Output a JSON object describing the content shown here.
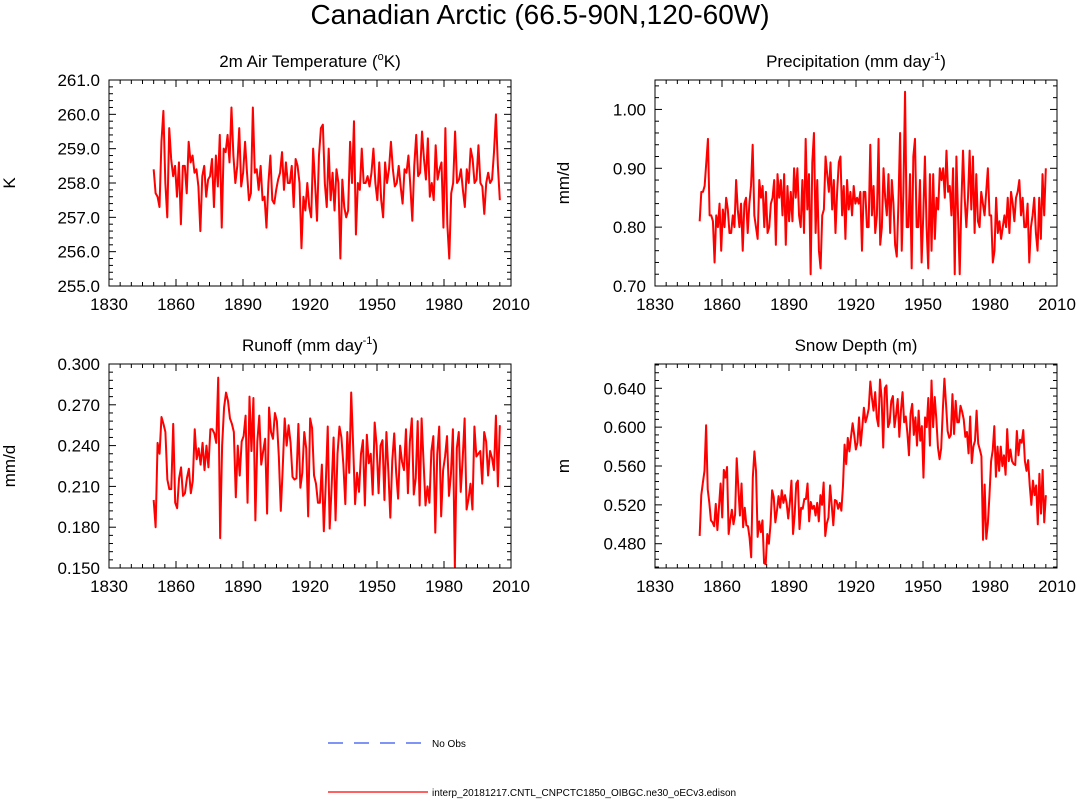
{
  "figure": {
    "title": "Canadian Arctic (66.5-90N,120-60W)"
  },
  "legend": {
    "items": [
      {
        "label": "No Obs",
        "color": "#3355ee",
        "style": "dashed"
      },
      {
        "label": "interp_20181217.CNTL_CNPCTC1850_OIBGC.ne30_oECv3.edison",
        "color": "#ff0000",
        "style": "solid"
      }
    ]
  },
  "chart_data": [
    {
      "type": "line",
      "title": "2m Air Temperature (",
      "title_sup": "o",
      "title_after": "K)",
      "xlabel": "",
      "ylabel": "K",
      "xlim": [
        1830,
        2010
      ],
      "ylim": [
        255.0,
        261.0
      ],
      "xticks": [
        1830,
        1860,
        1890,
        1920,
        1950,
        1980,
        2010
      ],
      "yticks": [
        "255.0",
        "256.0",
        "257.0",
        "258.0",
        "259.0",
        "260.0",
        "261.0"
      ],
      "series": [
        {
          "name": "interp_20181217.CNTL_CNPCTC1850_OIBGC.ne30_oECv3.edison",
          "color": "#ff0000",
          "x_start": 1850,
          "values": [
            258.4,
            257.7,
            257.6,
            257.3,
            259.2,
            260.1,
            258.0,
            257.0,
            259.6,
            258.7,
            258.2,
            258.5,
            257.6,
            258.6,
            256.8,
            258.5,
            258.5,
            257.7,
            259.2,
            258.6,
            258.8,
            258.3,
            258.4,
            257.9,
            256.6,
            258.2,
            258.5,
            257.6,
            258.1,
            258.2,
            258.7,
            257.3,
            258.8,
            257.9,
            259.4,
            256.7,
            259.0,
            258.9,
            259.4,
            258.6,
            260.2,
            258.8,
            258.0,
            258.5,
            259.6,
            257.9,
            258.3,
            259.2,
            258.3,
            257.5,
            257.7,
            260.2,
            258.3,
            258.4,
            257.8,
            258.5,
            257.5,
            257.6,
            256.7,
            258.0,
            258.8,
            257.5,
            257.4,
            257.8,
            258.1,
            258.3,
            258.9,
            257.8,
            258.6,
            258.0,
            258.0,
            258.5,
            257.3,
            258.7,
            258.5,
            258.0,
            256.1,
            257.6,
            257.2,
            258.0,
            257.3,
            257.0,
            259.0,
            258.0,
            256.9,
            258.8,
            259.6,
            259.7,
            258.0,
            257.3,
            259.0,
            257.5,
            258.3,
            257.2,
            258.4,
            258.0,
            255.8,
            258.1,
            257.3,
            257.0,
            257.2,
            259.2,
            258.0,
            259.8,
            256.5,
            258.0,
            257.8,
            259.0,
            258.0,
            258.0,
            258.2,
            257.9,
            258.3,
            259.0,
            258.0,
            257.5,
            258.6,
            257.5,
            257.0,
            258.6,
            258.0,
            258.4,
            259.2,
            258.4,
            257.9,
            258.0,
            258.5,
            257.9,
            257.4,
            258.4,
            258.3,
            258.8,
            257.9,
            256.9,
            258.5,
            259.4,
            258.2,
            258.3,
            259.5,
            258.7,
            258.1,
            259.3,
            257.6,
            258.0,
            257.5,
            259.1,
            258.1,
            258.4,
            258.6,
            256.7,
            259.6,
            256.8,
            255.8,
            257.7,
            258.0,
            259.5,
            258.0,
            258.1,
            258.4,
            257.8,
            257.3,
            258.4,
            258.0,
            259.0,
            258.7,
            258.0,
            258.1,
            259.1,
            258.0,
            257.9,
            257.1,
            258.0,
            258.3,
            258.0,
            258.1,
            258.9,
            260.0,
            258.5,
            257.5
          ]
        }
      ]
    },
    {
      "type": "line",
      "title": "Precipitation (mm day",
      "title_sup": "-1",
      "title_after": ")",
      "xlabel": "",
      "ylabel": "mm/d",
      "xlim": [
        1830,
        2010
      ],
      "ylim": [
        0.7,
        1.05
      ],
      "xticks": [
        1830,
        1860,
        1890,
        1920,
        1950,
        1980,
        2010
      ],
      "yticks": [
        "0.70",
        "0.80",
        "0.90",
        "1.00"
      ],
      "series": [
        {
          "name": "interp_20181217.CNTL_CNPCTC1850_OIBGC.ne30_oECv3.edison",
          "color": "#ff0000",
          "x_start": 1850,
          "values": [
            0.81,
            0.86,
            0.86,
            0.87,
            0.91,
            0.95,
            0.82,
            0.82,
            0.81,
            0.74,
            0.82,
            0.8,
            0.84,
            0.76,
            0.83,
            0.8,
            0.85,
            0.83,
            0.79,
            0.79,
            0.82,
            0.8,
            0.88,
            0.83,
            0.8,
            0.84,
            0.76,
            0.84,
            0.85,
            0.79,
            0.84,
            0.87,
            0.94,
            0.82,
            0.8,
            0.78,
            0.88,
            0.85,
            0.87,
            0.8,
            0.86,
            0.79,
            0.8,
            0.84,
            0.85,
            0.88,
            0.77,
            0.89,
            0.85,
            0.88,
            0.82,
            0.89,
            0.77,
            0.87,
            0.81,
            0.86,
            0.81,
            0.9,
            0.85,
            0.9,
            0.82,
            0.8,
            0.88,
            0.79,
            0.95,
            0.83,
            0.89,
            0.72,
            0.91,
            0.96,
            0.79,
            0.88,
            0.76,
            0.73,
            0.82,
            0.83,
            0.92,
            0.89,
            0.86,
            0.91,
            0.83,
            0.88,
            0.79,
            0.86,
            0.91,
            0.92,
            0.82,
            0.87,
            0.78,
            0.88,
            0.83,
            0.86,
            0.82,
            0.87,
            0.84,
            0.85,
            0.84,
            0.86,
            0.76,
            0.86,
            0.86,
            0.8,
            0.8,
            0.94,
            0.82,
            0.87,
            0.79,
            0.82,
            0.95,
            0.77,
            0.8,
            0.9,
            0.85,
            0.82,
            0.89,
            0.79,
            0.88,
            0.84,
            0.77,
            0.75,
            0.84,
            0.96,
            0.76,
            0.86,
            1.03,
            0.8,
            0.8,
            0.89,
            0.73,
            0.92,
            0.95,
            0.8,
            0.8,
            0.88,
            0.74,
            0.82,
            0.92,
            0.8,
            0.73,
            0.89,
            0.76,
            0.89,
            0.78,
            0.85,
            0.83,
            0.9,
            0.88,
            0.9,
            0.85,
            0.93,
            0.86,
            0.87,
            0.82,
            0.9,
            0.72,
            0.92,
            0.82,
            0.72,
            0.84,
            0.93,
            0.85,
            0.8,
            0.85,
            0.93,
            0.83,
            0.92,
            0.79,
            0.89,
            0.81,
            0.8,
            0.86,
            0.84,
            0.82,
            0.86,
            0.9,
            0.82,
            0.82,
            0.74,
            0.76,
            0.85,
            0.79,
            0.81,
            0.78,
            0.8,
            0.82,
            0.8,
            0.85,
            0.79,
            0.86,
            0.84,
            0.81,
            0.85,
            0.86,
            0.88,
            0.82,
            0.85,
            0.8,
            0.8,
            0.84,
            0.74,
            0.8,
            0.82,
            0.85,
            0.79,
            0.76,
            0.85,
            0.78,
            0.89,
            0.82,
            0.9
          ]
        }
      ]
    },
    {
      "type": "line",
      "title": "Runoff (mm day",
      "title_sup": "-1",
      "title_after": ")",
      "xlabel": "",
      "ylabel": "mm/d",
      "xlim": [
        1830,
        2010
      ],
      "ylim": [
        0.15,
        0.3
      ],
      "xticks": [
        1830,
        1860,
        1890,
        1920,
        1950,
        1980,
        2010
      ],
      "yticks": [
        "0.150",
        "0.180",
        "0.210",
        "0.240",
        "0.270",
        "0.300"
      ],
      "series": [
        {
          "name": "interp_20181217.CNTL_CNPCTC1850_OIBGC.ne30_oECv3.edison",
          "color": "#ff0000",
          "x_start": 1850,
          "values": [
            0.2,
            0.18,
            0.242,
            0.234,
            0.261,
            0.256,
            0.25,
            0.215,
            0.208,
            0.208,
            0.256,
            0.198,
            0.194,
            0.216,
            0.224,
            0.203,
            0.205,
            0.216,
            0.223,
            0.205,
            0.214,
            0.252,
            0.23,
            0.238,
            0.226,
            0.242,
            0.222,
            0.24,
            0.224,
            0.252,
            0.252,
            0.249,
            0.242,
            0.29,
            0.172,
            0.24,
            0.268,
            0.279,
            0.273,
            0.26,
            0.256,
            0.25,
            0.202,
            0.24,
            0.218,
            0.243,
            0.247,
            0.262,
            0.198,
            0.276,
            0.236,
            0.275,
            0.185,
            0.243,
            0.262,
            0.226,
            0.236,
            0.245,
            0.19,
            0.268,
            0.25,
            0.245,
            0.264,
            0.258,
            0.232,
            0.192,
            0.224,
            0.26,
            0.24,
            0.255,
            0.242,
            0.217,
            0.215,
            0.216,
            0.256,
            0.209,
            0.22,
            0.25,
            0.238,
            0.188,
            0.26,
            0.253,
            0.218,
            0.212,
            0.198,
            0.198,
            0.226,
            0.177,
            0.212,
            0.254,
            0.179,
            0.21,
            0.246,
            0.185,
            0.234,
            0.254,
            0.246,
            0.226,
            0.197,
            0.25,
            0.22,
            0.279,
            0.24,
            0.197,
            0.22,
            0.206,
            0.234,
            0.244,
            0.196,
            0.248,
            0.227,
            0.234,
            0.204,
            0.257,
            0.24,
            0.205,
            0.24,
            0.244,
            0.2,
            0.25,
            0.221,
            0.187,
            0.229,
            0.249,
            0.22,
            0.201,
            0.24,
            0.228,
            0.222,
            0.252,
            0.205,
            0.243,
            0.26,
            0.204,
            0.216,
            0.258,
            0.196,
            0.26,
            0.228,
            0.196,
            0.21,
            0.198,
            0.236,
            0.247,
            0.176,
            0.234,
            0.254,
            0.188,
            0.222,
            0.232,
            0.247,
            0.203,
            0.219,
            0.252,
            0.151,
            0.238,
            0.25,
            0.206,
            0.23,
            0.26,
            0.193,
            0.201,
            0.212,
            0.193,
            0.254,
            0.232,
            0.234,
            0.236,
            0.212,
            0.25,
            0.243,
            0.218,
            0.236,
            0.231,
            0.222,
            0.262,
            0.21,
            0.255
          ]
        }
      ]
    },
    {
      "type": "line",
      "title": "Snow Depth (m)",
      "title_sup": "",
      "title_after": "",
      "xlabel": "",
      "ylabel": "m",
      "xlim": [
        1830,
        2010
      ],
      "ylim": [
        0.455,
        0.665
      ],
      "xticks": [
        1830,
        1860,
        1890,
        1920,
        1950,
        1980,
        2010
      ],
      "yticks": [
        "0.480",
        "0.520",
        "0.560",
        "0.600",
        "0.640"
      ],
      "series": [
        {
          "name": "interp_20181217.CNTL_CNPCTC1850_OIBGC.ne30_oECv3.edison",
          "color": "#ff0000",
          "x_start": 1850,
          "values": [
            0.488,
            0.53,
            0.543,
            0.555,
            0.602,
            0.536,
            0.522,
            0.504,
            0.502,
            0.498,
            0.521,
            0.494,
            0.518,
            0.542,
            0.507,
            0.556,
            0.548,
            0.559,
            0.49,
            0.504,
            0.515,
            0.5,
            0.51,
            0.568,
            0.538,
            0.509,
            0.542,
            0.497,
            0.517,
            0.499,
            0.498,
            0.486,
            0.466,
            0.548,
            0.575,
            0.555,
            0.487,
            0.503,
            0.492,
            0.504,
            0.46,
            0.459,
            0.49,
            0.48,
            0.5,
            0.535,
            0.528,
            0.502,
            0.514,
            0.529,
            0.517,
            0.535,
            0.522,
            0.53,
            0.522,
            0.506,
            0.522,
            0.545,
            0.49,
            0.51,
            0.542,
            0.545,
            0.495,
            0.517,
            0.516,
            0.526,
            0.526,
            0.542,
            0.503,
            0.523,
            0.516,
            0.519,
            0.509,
            0.522,
            0.503,
            0.53,
            0.52,
            0.543,
            0.488,
            0.501,
            0.507,
            0.54,
            0.52,
            0.499,
            0.525,
            0.524,
            0.516,
            0.522,
            0.514,
            0.539,
            0.582,
            0.562,
            0.589,
            0.575,
            0.59,
            0.604,
            0.592,
            0.577,
            0.584,
            0.61,
            0.581,
            0.6,
            0.62,
            0.605,
            0.611,
            0.619,
            0.647,
            0.63,
            0.617,
            0.636,
            0.61,
            0.601,
            0.649,
            0.63,
            0.579,
            0.64,
            0.643,
            0.6,
            0.605,
            0.627,
            0.632,
            0.6,
            0.613,
            0.629,
            0.59,
            0.617,
            0.636,
            0.605,
            0.611,
            0.594,
            0.571,
            0.614,
            0.624,
            0.592,
            0.61,
            0.581,
            0.617,
            0.586,
            0.601,
            0.548,
            0.61,
            0.6,
            0.63,
            0.581,
            0.648,
            0.6,
            0.631,
            0.608,
            0.579,
            0.567,
            0.578,
            0.617,
            0.65,
            0.624,
            0.596,
            0.589,
            0.592,
            0.634,
            0.593,
            0.627,
            0.605,
            0.605,
            0.622,
            0.616,
            0.608,
            0.59,
            0.595,
            0.573,
            0.611,
            0.563,
            0.58,
            0.586,
            0.617,
            0.583,
            0.577,
            0.57,
            0.484,
            0.541,
            0.485,
            0.501,
            0.53,
            0.565,
            0.576,
            0.601,
            0.549,
            0.58,
            0.555,
            0.58,
            0.56,
            0.571,
            0.551,
            0.598,
            0.565,
            0.577,
            0.565,
            0.562,
            0.561,
            0.596,
            0.571,
            0.587,
            0.584,
            0.597,
            0.565,
            0.555,
            0.566,
            0.54,
            0.52,
            0.545,
            0.53,
            0.54,
            0.5,
            0.552,
            0.511,
            0.556,
            0.502,
            0.53
          ]
        }
      ]
    }
  ]
}
